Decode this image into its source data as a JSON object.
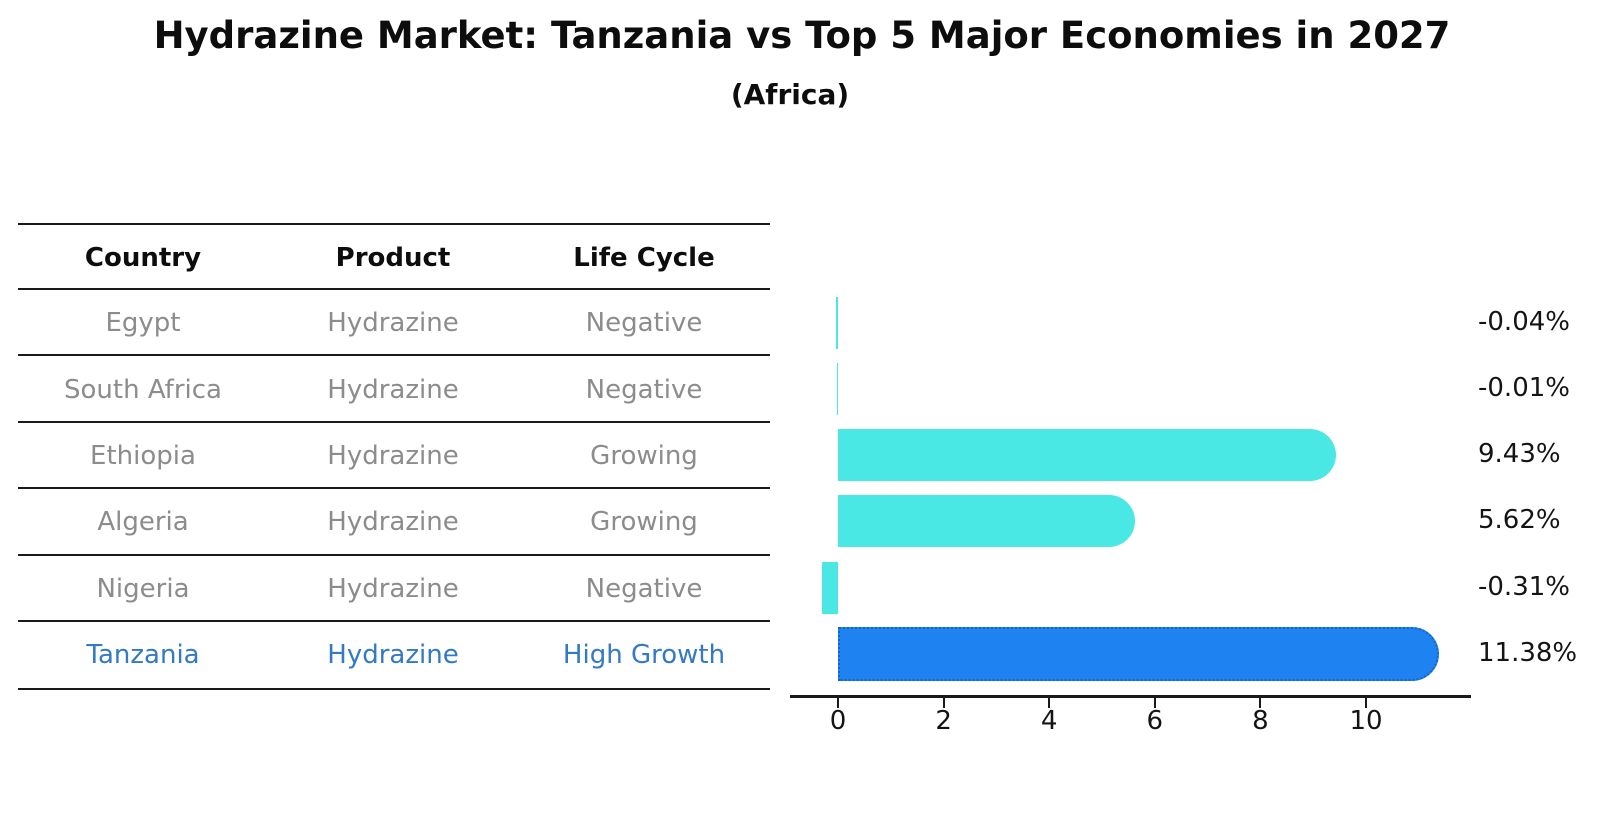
{
  "title": "Hydrazine Market: Tanzania vs Top 5 Major Economies in 2027",
  "subtitle": "(Africa)",
  "colors": {
    "bar_default": "#4ae8e4",
    "bar_highlight": "#1e82f0",
    "bar_highlight_border": "#1565c8",
    "table_line": "#1a1a1a",
    "header_text": "#0d0d0d",
    "row_text": "#8c8c8c",
    "highlight_text": "#3379c4",
    "value_text": "#141414",
    "axis": "#1a1a1a",
    "background": "#ffffff"
  },
  "table": {
    "columns": [
      "Country",
      "Product",
      "Life Cycle"
    ],
    "rows": [
      {
        "country": "Egypt",
        "product": "Hydrazine",
        "life_cycle": "Negative",
        "highlight": false
      },
      {
        "country": "South Africa",
        "product": "Hydrazine",
        "life_cycle": "Negative",
        "highlight": false
      },
      {
        "country": "Ethiopia",
        "product": "Hydrazine",
        "life_cycle": "Growing",
        "highlight": false
      },
      {
        "country": "Algeria",
        "product": "Hydrazine",
        "life_cycle": "Growing",
        "highlight": false
      },
      {
        "country": "Nigeria",
        "product": "Hydrazine",
        "life_cycle": "Negative",
        "highlight": false
      },
      {
        "country": "Tanzania",
        "product": "Hydrazine",
        "life_cycle": "High Growth",
        "highlight": true
      }
    ]
  },
  "chart_data": {
    "type": "bar",
    "orientation": "horizontal",
    "title": "Hydrazine Market: Tanzania vs Top 5 Major Economies in 2027",
    "subtitle": "(Africa)",
    "categories": [
      "Egypt",
      "South Africa",
      "Ethiopia",
      "Algeria",
      "Nigeria",
      "Tanzania"
    ],
    "values": [
      -0.04,
      -0.01,
      9.43,
      5.62,
      -0.31,
      11.38
    ],
    "value_labels": [
      "-0.04%",
      "-0.01%",
      "9.43%",
      "5.62%",
      "-0.31%",
      "11.38%"
    ],
    "highlight_index": 5,
    "xticks": [
      0,
      2,
      4,
      6,
      8,
      10
    ],
    "xlim": [
      -0.9,
      12.0
    ],
    "grid": false,
    "legend": false
  }
}
